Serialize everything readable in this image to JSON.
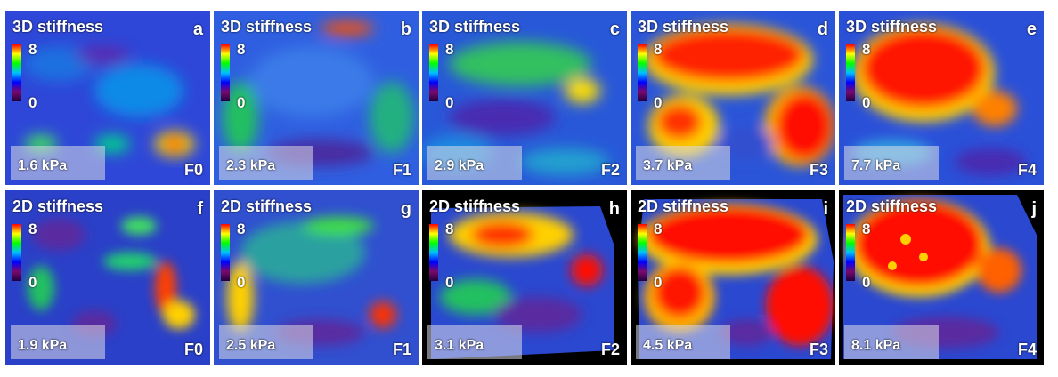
{
  "colorbar": {
    "max_label": "8",
    "min_label": "0",
    "colors": [
      "#ff0000",
      "#ffff00",
      "#00ff00",
      "#00c0ff",
      "#0000ff",
      "#7a0a6b"
    ]
  },
  "panels": [
    {
      "letter": "a",
      "title": "3D stiffness",
      "value": "1.6 kPa",
      "grade": "F0"
    },
    {
      "letter": "b",
      "title": "3D stiffness",
      "value": "2.3 kPa",
      "grade": "F1"
    },
    {
      "letter": "c",
      "title": "3D stiffness",
      "value": "2.9 kPa",
      "grade": "F2"
    },
    {
      "letter": "d",
      "title": "3D stiffness",
      "value": "3.7 kPa",
      "grade": "F3"
    },
    {
      "letter": "e",
      "title": "3D stiffness",
      "value": "7.7 kPa",
      "grade": "F4"
    },
    {
      "letter": "f",
      "title": "2D stiffness",
      "value": "1.9 kPa",
      "grade": "F0"
    },
    {
      "letter": "g",
      "title": "2D stiffness",
      "value": "2.5 kPa",
      "grade": "F1"
    },
    {
      "letter": "h",
      "title": "2D stiffness",
      "value": "3.1 kPa",
      "grade": "F2"
    },
    {
      "letter": "i",
      "title": "2D stiffness",
      "value": "4.5 kPa",
      "grade": "F3"
    },
    {
      "letter": "j",
      "title": "2D stiffness",
      "value": "8.1 kPa",
      "grade": "F4"
    }
  ]
}
